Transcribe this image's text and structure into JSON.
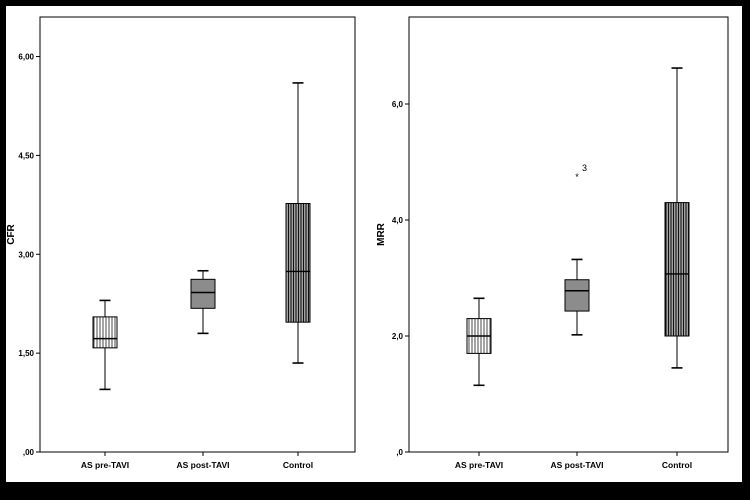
{
  "chart_data": [
    {
      "type": "boxplot",
      "ylabel": "CFR",
      "ylim": [
        0,
        6.6
      ],
      "yticks": [
        0,
        1.5,
        3.0,
        4.5,
        6.0
      ],
      "ytick_labels": [
        ",00",
        "1,50",
        "3,00",
        "4,50",
        "6,00"
      ],
      "categories": [
        "AS pre-TAVI",
        "AS post-TAVI",
        "Control"
      ],
      "boxes": [
        {
          "category": "AS pre-TAVI",
          "fill": "vertical-hatch",
          "min": 0.95,
          "q1": 1.58,
          "median": 1.72,
          "q3": 2.05,
          "max": 2.3
        },
        {
          "category": "AS post-TAVI",
          "fill": "solid-gray",
          "min": 1.8,
          "q1": 2.18,
          "median": 2.42,
          "q3": 2.62,
          "max": 2.75
        },
        {
          "category": "Control",
          "fill": "dense-vertical-hatch",
          "min": 1.35,
          "q1": 1.97,
          "median": 2.74,
          "q3": 3.77,
          "max": 5.6
        }
      ],
      "outliers": []
    },
    {
      "type": "boxplot",
      "ylabel": "MRR",
      "ylim": [
        0,
        7.5
      ],
      "yticks": [
        0,
        2.0,
        4.0,
        6.0
      ],
      "ytick_labels": [
        ",0",
        "2,0",
        "4,0",
        "6,0"
      ],
      "categories": [
        "AS pre-TAVI",
        "AS post-TAVI",
        "Control"
      ],
      "boxes": [
        {
          "category": "AS pre-TAVI",
          "fill": "vertical-hatch",
          "min": 1.15,
          "q1": 1.7,
          "median": 2.0,
          "q3": 2.3,
          "max": 2.65
        },
        {
          "category": "AS post-TAVI",
          "fill": "solid-gray",
          "min": 2.02,
          "q1": 2.43,
          "median": 2.78,
          "q3": 2.97,
          "max": 3.32
        },
        {
          "category": "Control",
          "fill": "dense-vertical-hatch",
          "min": 1.45,
          "q1": 2.0,
          "median": 3.07,
          "q3": 4.3,
          "max": 6.62
        }
      ],
      "outliers": [
        {
          "category": "AS post-TAVI",
          "value": 4.78,
          "marker": "*",
          "label": "3"
        }
      ]
    }
  ]
}
